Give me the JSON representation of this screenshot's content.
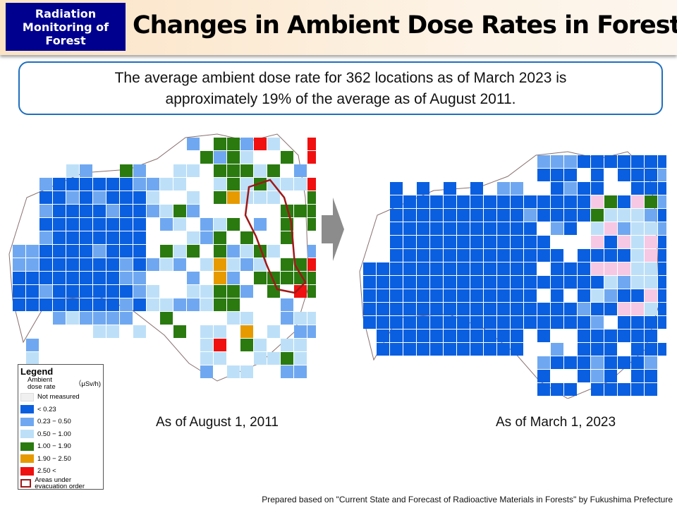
{
  "header": {
    "badge": "Radiation Monitoring of Forest",
    "title": "Changes in Ambient Dose Rates in Forests"
  },
  "summary": {
    "line1": "The average ambient dose rate for 362 locations as of March 2023 is",
    "line2": "approximately 19% of the average as of August 2011."
  },
  "maps": [
    {
      "caption": "As of August 1, 2011"
    },
    {
      "caption": "As of March 1, 2023"
    }
  ],
  "legend": {
    "title": "Legend",
    "label": "Ambient dose rate",
    "unit": "（μSv/h)",
    "items": [
      {
        "label": "Not measured",
        "color": "#f0f0f0"
      },
      {
        "label": "< 0.23",
        "color": "#0a5fe0"
      },
      {
        "label": "0.23 − 0.50",
        "color": "#6fa8f0"
      },
      {
        "label": "0.50 − 1.00",
        "color": "#bde0f8"
      },
      {
        "label": "1.00 − 1.90",
        "color": "#2a7a10"
      },
      {
        "label": "1.90 − 2.50",
        "color": "#e69a00"
      },
      {
        "label": "2.50 <",
        "color": "#f01010"
      },
      {
        "label": "Areas under evacuation order",
        "color": "#a01818"
      }
    ]
  },
  "source": "Prepared based on \"Current State and Forecast of Radioactive Materials in Forests\" by Fukushima Prefecture"
}
